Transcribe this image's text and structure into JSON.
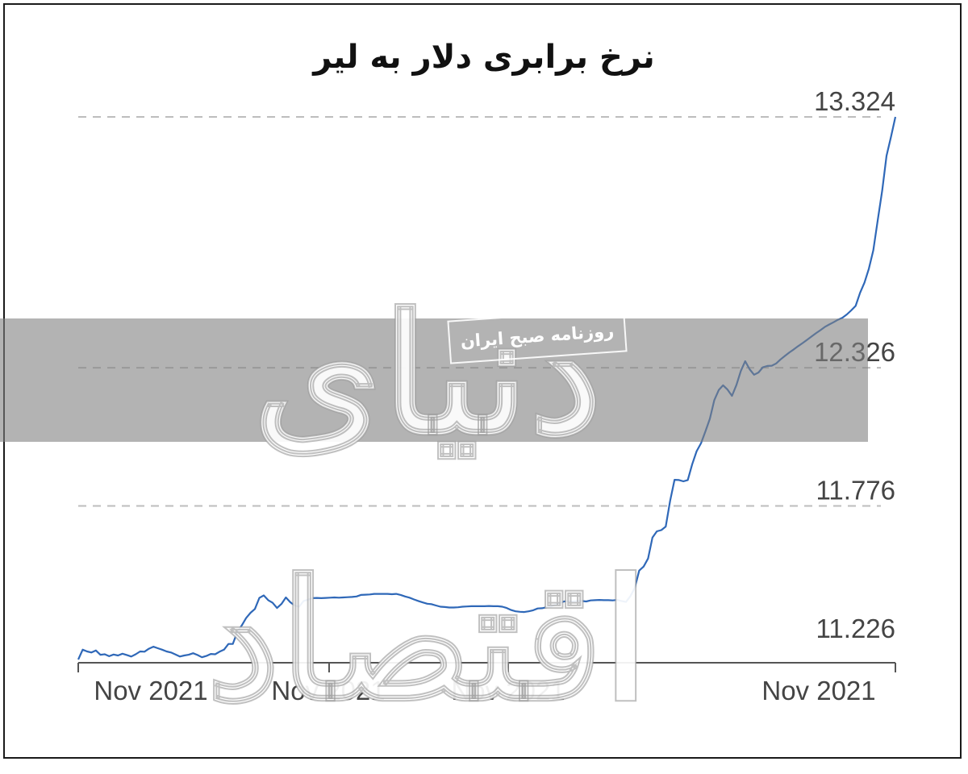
{
  "watermark": {
    "logo_text": "دنیای اقتصاد",
    "stamp_text": "روزنامه صبح ایران"
  },
  "colors": {
    "line": "#2f68b8",
    "grid": "#bdbdbd",
    "axis": "#555555",
    "band": "#808080"
  },
  "chart_data": {
    "type": "line",
    "title": "نرخ برابری دلار به لیر",
    "xlabel": "",
    "ylabel": "",
    "y_ticks": [
      11.226,
      11.776,
      12.326,
      13.324
    ],
    "y_tick_labels": [
      "11.226",
      "11.776",
      "12.326",
      "13.324"
    ],
    "ylim": [
      11.165,
      13.324
    ],
    "x_tick_labels": [
      "Nov 2021",
      "Nov 2021",
      "Nov 2021",
      "Nov 2021"
    ],
    "grid": true,
    "legend": "none",
    "series": [
      {
        "values": [
          11.165,
          11.204,
          11.197,
          11.193,
          11.201,
          11.184,
          11.186,
          11.178,
          11.185,
          11.181,
          11.188,
          11.183,
          11.177,
          11.186,
          11.197,
          11.196,
          11.208,
          11.216,
          11.21,
          11.204,
          11.197,
          11.193,
          11.185,
          11.177,
          11.181,
          11.184,
          11.19,
          11.183,
          11.174,
          11.179,
          11.187,
          11.186,
          11.196,
          11.204,
          11.227,
          11.227,
          11.274,
          11.3,
          11.33,
          11.351,
          11.366,
          11.41,
          11.42,
          11.401,
          11.391,
          11.37,
          11.386,
          11.412,
          11.393,
          11.38,
          11.375,
          11.398,
          11.403,
          11.409,
          11.41,
          11.409,
          11.41,
          11.411,
          11.412,
          11.411,
          11.412,
          11.413,
          11.414,
          11.416,
          11.422,
          11.423,
          11.424,
          11.426,
          11.426,
          11.426,
          11.426,
          11.425,
          11.426,
          11.422,
          11.416,
          11.411,
          11.404,
          11.398,
          11.392,
          11.387,
          11.385,
          11.38,
          11.375,
          11.374,
          11.372,
          11.372,
          11.373,
          11.375,
          11.376,
          11.377,
          11.377,
          11.377,
          11.377,
          11.378,
          11.377,
          11.377,
          11.375,
          11.37,
          11.362,
          11.357,
          11.355,
          11.354,
          11.357,
          11.361,
          11.368,
          11.369,
          11.373,
          11.376,
          11.383,
          11.39,
          11.396,
          11.397,
          11.396,
          11.398,
          11.398,
          11.396,
          11.4,
          11.401,
          11.402,
          11.401,
          11.401,
          11.4,
          11.402,
          11.398,
          11.394,
          11.417,
          11.45,
          11.519,
          11.535,
          11.567,
          11.65,
          11.675,
          11.68,
          11.694,
          11.796,
          11.88,
          11.879,
          11.874,
          11.879,
          11.942,
          11.994,
          12.026,
          12.073,
          12.123,
          12.197,
          12.237,
          12.256,
          12.239,
          12.214,
          12.257,
          12.313,
          12.352,
          12.32,
          12.298,
          12.307,
          12.328,
          12.333,
          12.334,
          12.343,
          12.359,
          12.373,
          12.387,
          12.399,
          12.412,
          12.424,
          12.437,
          12.45,
          12.463,
          12.475,
          12.488,
          12.498,
          12.507,
          12.517,
          12.525,
          12.538,
          12.554,
          12.572,
          12.624,
          12.665,
          12.72,
          12.793,
          12.913,
          13.03,
          13.169,
          13.244,
          13.324
        ]
      }
    ]
  }
}
